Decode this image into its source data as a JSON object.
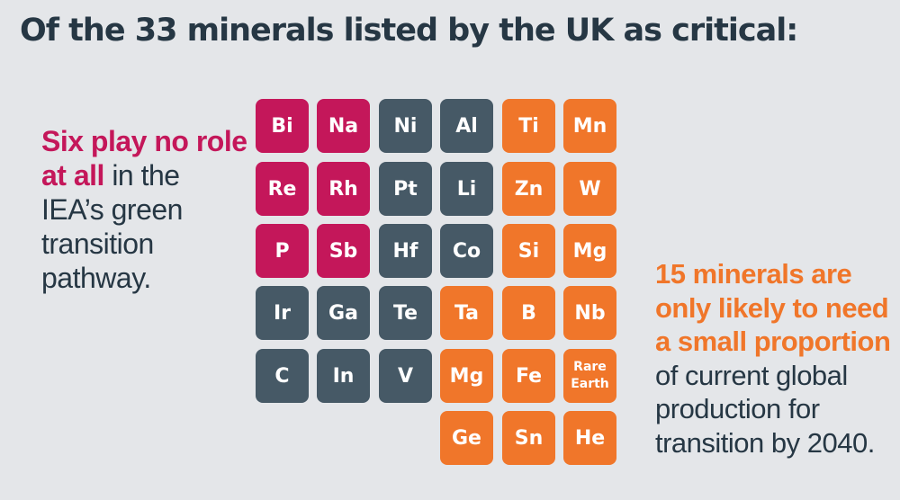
{
  "title": "Of the 33 minerals listed by the UK as critical:",
  "left_note": {
    "highlight": "Six play no role at all",
    "rest": " in the IEA’s green transition pathway."
  },
  "right_note": {
    "highlight": "15 minerals are only likely to need a small proportion",
    "rest": " of current global production for transition by 2040."
  },
  "colors": {
    "no_role": "#c4175a",
    "other": "#465966",
    "small_proportion": "#f0762a",
    "background": "#e4e6e9",
    "text": "#263744"
  },
  "tiles": [
    {
      "symbol": "Bi",
      "group": "no_role",
      "row": 0,
      "col": 0
    },
    {
      "symbol": "Na",
      "group": "no_role",
      "row": 0,
      "col": 1
    },
    {
      "symbol": "Ni",
      "group": "other",
      "row": 0,
      "col": 2
    },
    {
      "symbol": "Al",
      "group": "other",
      "row": 0,
      "col": 3
    },
    {
      "symbol": "Ti",
      "group": "small_proportion",
      "row": 0,
      "col": 4
    },
    {
      "symbol": "Mn",
      "group": "small_proportion",
      "row": 0,
      "col": 5
    },
    {
      "symbol": "Re",
      "group": "no_role",
      "row": 1,
      "col": 0
    },
    {
      "symbol": "Rh",
      "group": "no_role",
      "row": 1,
      "col": 1
    },
    {
      "symbol": "Pt",
      "group": "other",
      "row": 1,
      "col": 2
    },
    {
      "symbol": "Li",
      "group": "other",
      "row": 1,
      "col": 3
    },
    {
      "symbol": "Zn",
      "group": "small_proportion",
      "row": 1,
      "col": 4
    },
    {
      "symbol": "W",
      "group": "small_proportion",
      "row": 1,
      "col": 5
    },
    {
      "symbol": "P",
      "group": "no_role",
      "row": 2,
      "col": 0
    },
    {
      "symbol": "Sb",
      "group": "no_role",
      "row": 2,
      "col": 1
    },
    {
      "symbol": "Hf",
      "group": "other",
      "row": 2,
      "col": 2
    },
    {
      "symbol": "Co",
      "group": "other",
      "row": 2,
      "col": 3
    },
    {
      "symbol": "Si",
      "group": "small_proportion",
      "row": 2,
      "col": 4
    },
    {
      "symbol": "Mg",
      "group": "small_proportion",
      "row": 2,
      "col": 5
    },
    {
      "symbol": "Ir",
      "group": "other",
      "row": 3,
      "col": 0
    },
    {
      "symbol": "Ga",
      "group": "other",
      "row": 3,
      "col": 1
    },
    {
      "symbol": "Te",
      "group": "other",
      "row": 3,
      "col": 2
    },
    {
      "symbol": "Ta",
      "group": "small_proportion",
      "row": 3,
      "col": 3
    },
    {
      "symbol": "B",
      "group": "small_proportion",
      "row": 3,
      "col": 4
    },
    {
      "symbol": "Nb",
      "group": "small_proportion",
      "row": 3,
      "col": 5
    },
    {
      "symbol": "C",
      "group": "other",
      "row": 4,
      "col": 0
    },
    {
      "symbol": "In",
      "group": "other",
      "row": 4,
      "col": 1
    },
    {
      "symbol": "V",
      "group": "other",
      "row": 4,
      "col": 2
    },
    {
      "symbol": "Mg",
      "group": "small_proportion",
      "row": 4,
      "col": 3
    },
    {
      "symbol": "Fe",
      "group": "small_proportion",
      "row": 4,
      "col": 4
    },
    {
      "symbol": "Rare Earth",
      "group": "small_proportion",
      "row": 4,
      "col": 5
    },
    {
      "symbol": "Ge",
      "group": "small_proportion",
      "row": 5,
      "col": 3
    },
    {
      "symbol": "Sn",
      "group": "small_proportion",
      "row": 5,
      "col": 4
    },
    {
      "symbol": "He",
      "group": "small_proportion",
      "row": 5,
      "col": 5
    }
  ]
}
